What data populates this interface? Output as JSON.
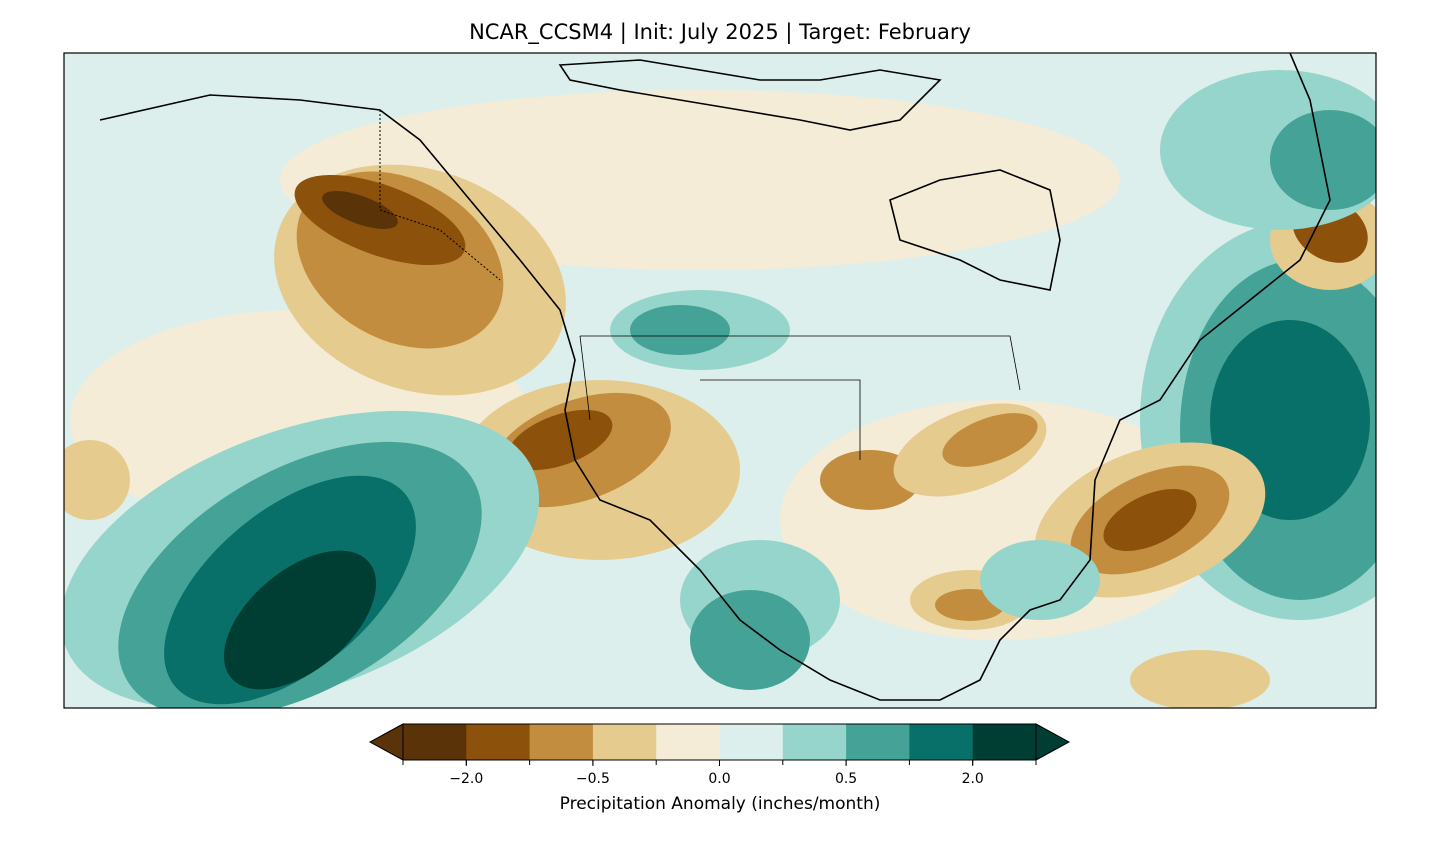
{
  "title": "NCAR_CCSM4 | Init: July 2025 | Target: February",
  "colorbar": {
    "label": "Precipitation Anomaly (inches/month)",
    "levels": [
      -3,
      -2,
      -1,
      -0.5,
      -0.25,
      0,
      0.25,
      0.5,
      1,
      2,
      3
    ],
    "ticks": [
      {
        "value": -2,
        "label": "−2.0"
      },
      {
        "value": -0.5,
        "label": "−0.5"
      },
      {
        "value": 0,
        "label": "0.0"
      },
      {
        "value": 0.5,
        "label": "0.5"
      },
      {
        "value": 2,
        "label": "2.0"
      }
    ],
    "colors": [
      "#5a3408",
      "#8c510a",
      "#c28d3e",
      "#e5cb8e",
      "#f5ecd8",
      "#dcefec",
      "#96d5cb",
      "#45a297",
      "#087068",
      "#003d33"
    ],
    "extend": "both"
  }
}
